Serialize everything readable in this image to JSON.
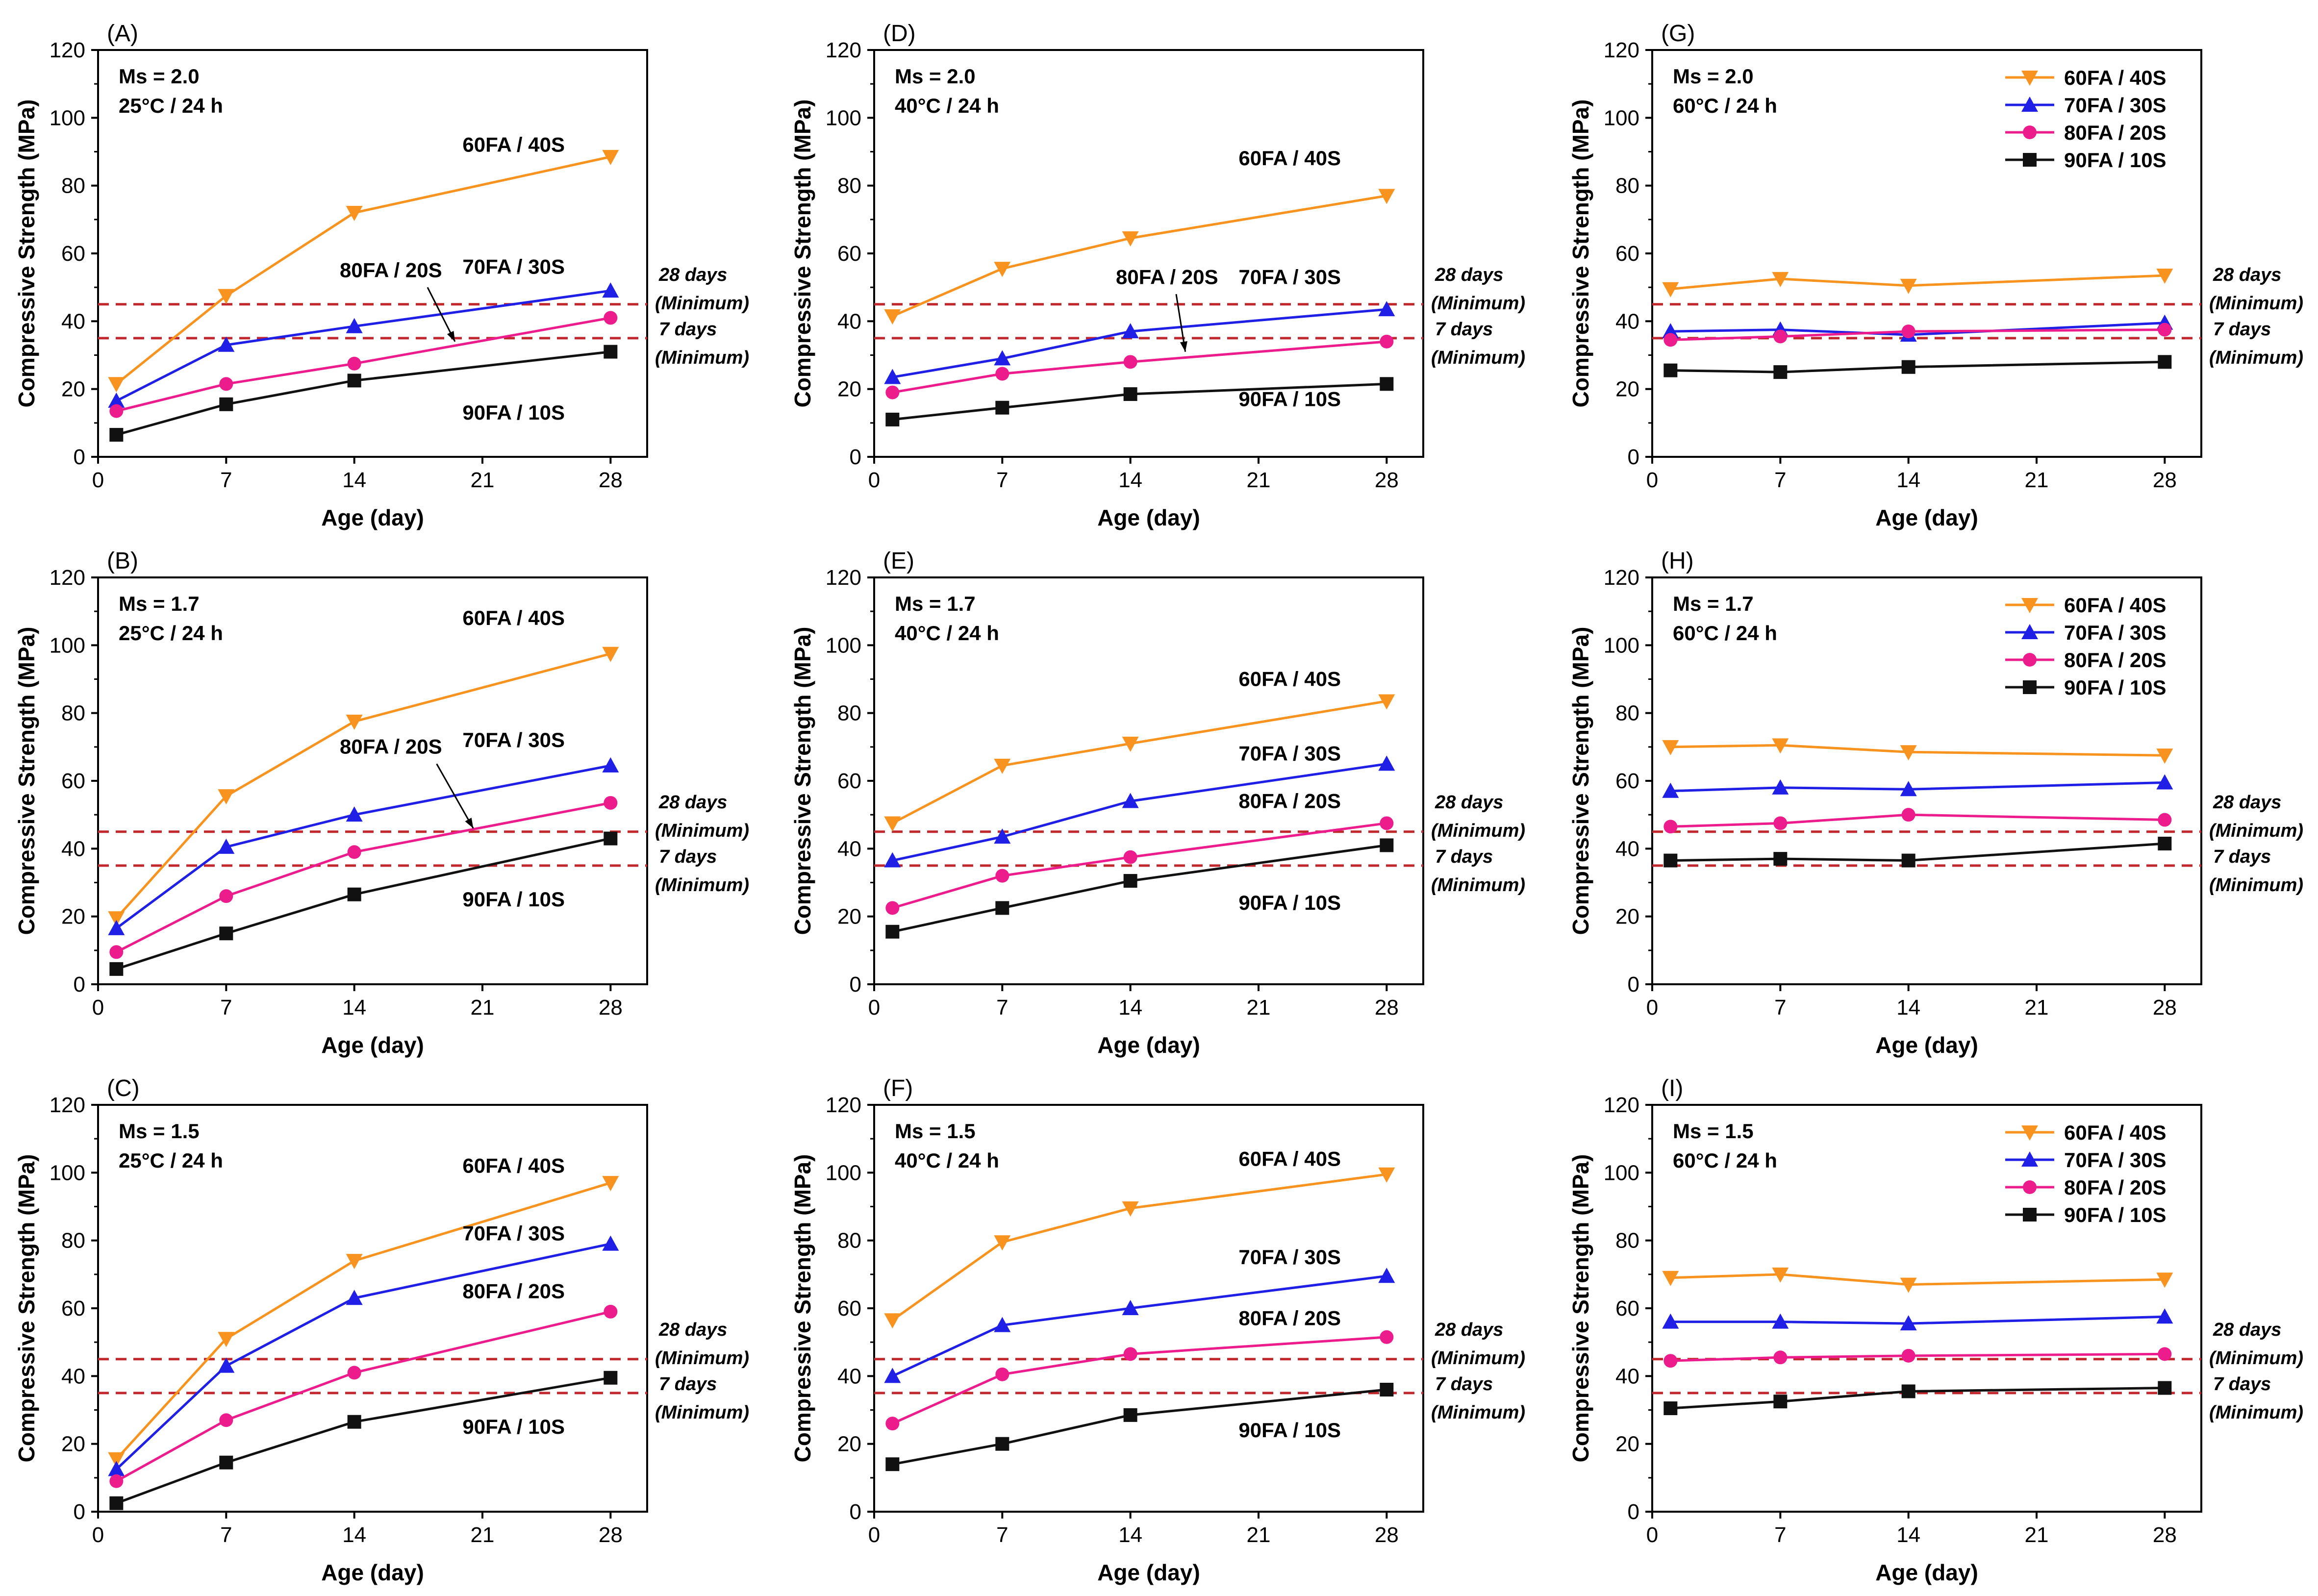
{
  "figure": {
    "common": {
      "xlabel": "Age (day)",
      "ylabel": "Compressive Strength (MPa)",
      "xlim": [
        0,
        30
      ],
      "ylim": [
        0,
        120
      ],
      "xticks": [
        0,
        7,
        14,
        21,
        28
      ],
      "yticks": [
        0,
        20,
        40,
        60,
        80,
        100,
        120
      ],
      "x": [
        1,
        7,
        14,
        28
      ],
      "reference_lines": [
        {
          "value": 45,
          "label_line1": "28 days",
          "label_line2": "(Minimum)"
        },
        {
          "value": 35,
          "label_line1": "7 days",
          "label_line2": "(Minimum)"
        }
      ]
    },
    "series_style": [
      {
        "name": "60FA / 40S",
        "color": "#F7931E",
        "marker": "triangle-down"
      },
      {
        "name": "70FA / 30S",
        "color": "#1F1FE6",
        "marker": "triangle-up"
      },
      {
        "name": "80FA / 20S",
        "color": "#EC1C8C",
        "marker": "circle"
      },
      {
        "name": "90FA / 10S",
        "color": "#111111",
        "marker": "square"
      }
    ],
    "reference_line_color": "#C0282D"
  },
  "chart_data": [
    {
      "type": "line",
      "panel": "(A)",
      "ms": "Ms = 2.0",
      "condition": "25°C /  24 h",
      "xlabel": "Age (day)",
      "ylabel": "Compressive Strength (MPa)",
      "ylim": [
        0,
        120
      ],
      "x": [
        1,
        7,
        14,
        28
      ],
      "series": [
        {
          "name": "60FA / 40S",
          "values": [
            21.5,
            47.5,
            72.0,
            88.5
          ]
        },
        {
          "name": "70FA / 30S",
          "values": [
            16.5,
            33.0,
            38.5,
            49.0
          ]
        },
        {
          "name": "80FA / 20S",
          "values": [
            13.5,
            21.5,
            27.5,
            41.0
          ]
        },
        {
          "name": "90FA / 10S",
          "values": [
            6.5,
            15.5,
            22.5,
            31.0
          ]
        }
      ],
      "annotations": [
        "60FA / 40S",
        "70FA / 30S",
        "80FA / 20S",
        "90FA / 10S"
      ],
      "legend": false
    },
    {
      "type": "line",
      "panel": "(D)",
      "ms": "Ms = 2.0",
      "condition": "40°C /  24 h",
      "xlabel": "Age (day)",
      "ylabel": "Compressive Strength (MPa)",
      "ylim": [
        0,
        120
      ],
      "x": [
        1,
        7,
        14,
        28
      ],
      "series": [
        {
          "name": "60FA / 40S",
          "values": [
            41.5,
            55.5,
            64.5,
            77.0
          ]
        },
        {
          "name": "70FA / 30S",
          "values": [
            23.5,
            29.0,
            37.0,
            43.5
          ]
        },
        {
          "name": "80FA / 20S",
          "values": [
            19.0,
            24.5,
            28.0,
            34.0
          ]
        },
        {
          "name": "90FA / 10S",
          "values": [
            11.0,
            14.5,
            18.5,
            21.5
          ]
        }
      ],
      "annotations": [
        "60FA / 40S",
        "70FA / 30S",
        "80FA / 20S",
        "90FA / 10S"
      ],
      "legend": false
    },
    {
      "type": "line",
      "panel": "(G)",
      "ms": "Ms = 2.0",
      "condition": "60°C /  24 h",
      "xlabel": "Age (day)",
      "ylabel": "Compressive Strength (MPa)",
      "ylim": [
        0,
        120
      ],
      "x": [
        1,
        7,
        14,
        28
      ],
      "series": [
        {
          "name": "60FA / 40S",
          "values": [
            49.5,
            52.5,
            50.5,
            53.5
          ]
        },
        {
          "name": "70FA / 30S",
          "values": [
            37.0,
            37.5,
            36.0,
            39.5
          ]
        },
        {
          "name": "80FA / 20S",
          "values": [
            34.5,
            35.5,
            37.0,
            37.5
          ]
        },
        {
          "name": "90FA / 10S",
          "values": [
            25.5,
            25.0,
            26.5,
            28.0
          ]
        }
      ],
      "legend": true
    },
    {
      "type": "line",
      "panel": "(B)",
      "ms": "Ms = 1.7",
      "condition": "25°C /  24 h",
      "xlabel": "Age (day)",
      "ylabel": "Compressive Strength (MPa)",
      "ylim": [
        0,
        120
      ],
      "x": [
        1,
        7,
        14,
        28
      ],
      "series": [
        {
          "name": "60FA / 40S",
          "values": [
            19.5,
            55.5,
            77.5,
            97.5
          ]
        },
        {
          "name": "70FA / 30S",
          "values": [
            16.5,
            40.5,
            50.0,
            64.5
          ]
        },
        {
          "name": "80FA / 20S",
          "values": [
            9.5,
            26.0,
            39.0,
            53.5
          ]
        },
        {
          "name": "90FA / 10S",
          "values": [
            4.5,
            15.0,
            26.5,
            43.0
          ]
        }
      ],
      "annotations": [
        "60FA / 40S",
        "70FA / 30S",
        "80FA / 20S",
        "90FA / 10S"
      ],
      "legend": false
    },
    {
      "type": "line",
      "panel": "(E)",
      "ms": "Ms = 1.7",
      "condition": "40°C /  24 h",
      "xlabel": "Age (day)",
      "ylabel": "Compressive Strength (MPa)",
      "ylim": [
        0,
        120
      ],
      "x": [
        1,
        7,
        14,
        28
      ],
      "series": [
        {
          "name": "60FA / 40S",
          "values": [
            47.5,
            64.5,
            71.0,
            83.5
          ]
        },
        {
          "name": "70FA / 30S",
          "values": [
            36.5,
            43.5,
            54.0,
            65.0
          ]
        },
        {
          "name": "80FA / 20S",
          "values": [
            22.5,
            32.0,
            37.5,
            47.5
          ]
        },
        {
          "name": "90FA / 10S",
          "values": [
            15.5,
            22.5,
            30.5,
            41.0
          ]
        }
      ],
      "annotations": [
        "60FA / 40S",
        "70FA / 30S",
        "80FA / 20S",
        "90FA / 10S"
      ],
      "legend": false
    },
    {
      "type": "line",
      "panel": "(H)",
      "ms": "Ms = 1.7",
      "condition": "60°C /  24 h",
      "xlabel": "Age (day)",
      "ylabel": "Compressive Strength (MPa)",
      "ylim": [
        0,
        120
      ],
      "x": [
        1,
        7,
        14,
        28
      ],
      "series": [
        {
          "name": "60FA / 40S",
          "values": [
            70.0,
            70.5,
            68.5,
            67.5
          ]
        },
        {
          "name": "70FA / 30S",
          "values": [
            57.0,
            58.0,
            57.5,
            59.5
          ]
        },
        {
          "name": "80FA / 20S",
          "values": [
            46.5,
            47.5,
            50.0,
            48.5
          ]
        },
        {
          "name": "90FA / 10S",
          "values": [
            36.5,
            37.0,
            36.5,
            41.5
          ]
        }
      ],
      "legend": true
    },
    {
      "type": "line",
      "panel": "(C)",
      "ms": "Ms = 1.5",
      "condition": "25°C /  24 h",
      "xlabel": "Age (day)",
      "ylabel": "Compressive Strength (MPa)",
      "ylim": [
        0,
        120
      ],
      "x": [
        1,
        7,
        14,
        28
      ],
      "series": [
        {
          "name": "60FA / 40S",
          "values": [
            15.5,
            51.0,
            74.0,
            97.0
          ]
        },
        {
          "name": "70FA / 30S",
          "values": [
            12.5,
            43.0,
            63.0,
            79.0
          ]
        },
        {
          "name": "80FA / 20S",
          "values": [
            9.0,
            27.0,
            41.0,
            59.0
          ]
        },
        {
          "name": "90FA / 10S",
          "values": [
            2.5,
            14.5,
            26.5,
            39.5
          ]
        }
      ],
      "annotations": [
        "60FA / 40S",
        "70FA / 30S",
        "80FA / 20S",
        "90FA / 10S"
      ],
      "legend": false
    },
    {
      "type": "line",
      "panel": "(F)",
      "ms": "Ms = 1.5",
      "condition": "40°C /  24 h",
      "xlabel": "Age (day)",
      "ylabel": "Compressive Strength (MPa)",
      "ylim": [
        0,
        120
      ],
      "x": [
        1,
        7,
        14,
        28
      ],
      "series": [
        {
          "name": "60FA / 40S",
          "values": [
            56.5,
            79.5,
            89.5,
            99.5
          ]
        },
        {
          "name": "70FA / 30S",
          "values": [
            40.0,
            55.0,
            60.0,
            69.5
          ]
        },
        {
          "name": "80FA / 20S",
          "values": [
            26.0,
            40.5,
            46.5,
            51.5
          ]
        },
        {
          "name": "90FA / 10S",
          "values": [
            14.0,
            20.0,
            28.5,
            36.0
          ]
        }
      ],
      "annotations": [
        "60FA / 40S",
        "70FA / 30S",
        "80FA / 20S",
        "90FA / 10S"
      ],
      "legend": false
    },
    {
      "type": "line",
      "panel": "(I)",
      "ms": "Ms = 1.5",
      "condition": "60°C /  24 h",
      "xlabel": "Age (day)",
      "ylabel": "Compressive Strength (MPa)",
      "ylim": [
        0,
        120
      ],
      "x": [
        1,
        7,
        14,
        28
      ],
      "series": [
        {
          "name": "60FA / 40S",
          "values": [
            69.0,
            70.0,
            67.0,
            68.5
          ]
        },
        {
          "name": "70FA / 30S",
          "values": [
            56.0,
            56.0,
            55.5,
            57.5
          ]
        },
        {
          "name": "80FA / 20S",
          "values": [
            44.5,
            45.5,
            46.0,
            46.5
          ]
        },
        {
          "name": "90FA / 10S",
          "values": [
            30.5,
            32.5,
            35.5,
            36.5
          ]
        }
      ],
      "legend": true
    }
  ]
}
